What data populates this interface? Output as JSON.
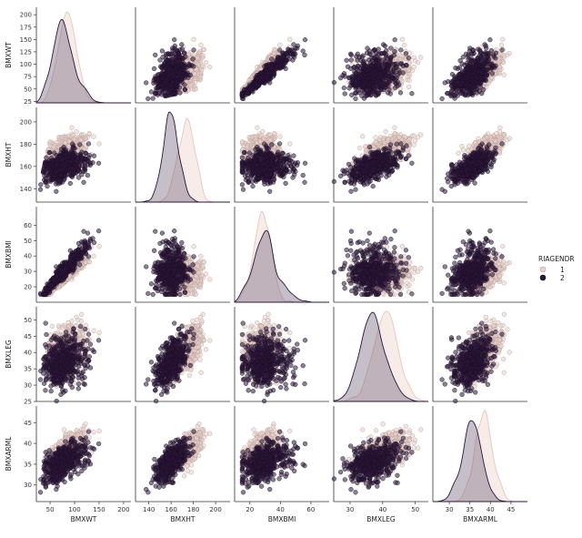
{
  "chart_data": {
    "type": "scatter",
    "variables": [
      "BMXWT",
      "BMXHT",
      "BMXBMI",
      "BMXLEG",
      "BMXARML"
    ],
    "axis_labels": [
      "BMXWT",
      "BMXHT",
      "BMXBMI",
      "BMXLEG",
      "BMXARML"
    ],
    "ranges": {
      "BMXWT": [
        22,
        215
      ],
      "BMXHT": [
        128,
        213
      ],
      "BMXBMI": [
        10,
        72
      ],
      "BMXLEG": [
        25,
        54
      ],
      "BMXARML": [
        26,
        49
      ]
    },
    "ticks": {
      "BMXWT": [
        50,
        100,
        150,
        200
      ],
      "BMXHT": [
        140,
        160,
        180,
        200
      ],
      "BMXBMI": [
        20,
        40,
        60
      ],
      "BMXLEG": [
        30,
        40,
        50
      ],
      "BMXARML": [
        30,
        35,
        40,
        45
      ]
    },
    "ytick_labels": {
      "BMXWT": [
        "25",
        "50",
        "75",
        "100",
        "125",
        "150",
        "175",
        "200"
      ],
      "BMXHT": [
        "140",
        "160",
        "180",
        "200"
      ],
      "BMXBMI": [
        "20",
        "30",
        "40",
        "50",
        "60"
      ],
      "BMXLEG": [
        "25",
        "30",
        "35",
        "40",
        "45",
        "50"
      ],
      "BMXARML": [
        "30",
        "35",
        "40",
        "45"
      ]
    },
    "hue": {
      "title": "RIAGENDR",
      "levels": [
        {
          "label": "1",
          "color": "#e8d2cc",
          "edge": "#b89a94"
        },
        {
          "label": "2",
          "color": "#2b1638",
          "edge": "#1a0c24"
        }
      ]
    },
    "group_stats": {
      "1": {
        "mean": {
          "BMXWT": 87,
          "BMXHT": 174,
          "BMXBMI": 28.5,
          "BMXLEG": 41,
          "BMXARML": 38.5
        },
        "sd": {
          "BMXWT": 22,
          "BMXHT": 7.5,
          "BMXBMI": 6,
          "BMXLEG": 3.5,
          "BMXARML": 2.3
        }
      },
      "2": {
        "mean": {
          "BMXWT": 76,
          "BMXHT": 160,
          "BMXBMI": 29.5,
          "BMXLEG": 37,
          "BMXARML": 35.5
        },
        "sd": {
          "BMXWT": 22,
          "BMXHT": 7,
          "BMXBMI": 7.5,
          "BMXLEG": 3.8,
          "BMXARML": 2.6
        }
      }
    },
    "diagonal": "kde",
    "offdiagonal": "scatter",
    "grid": false,
    "legend_position": "right"
  }
}
